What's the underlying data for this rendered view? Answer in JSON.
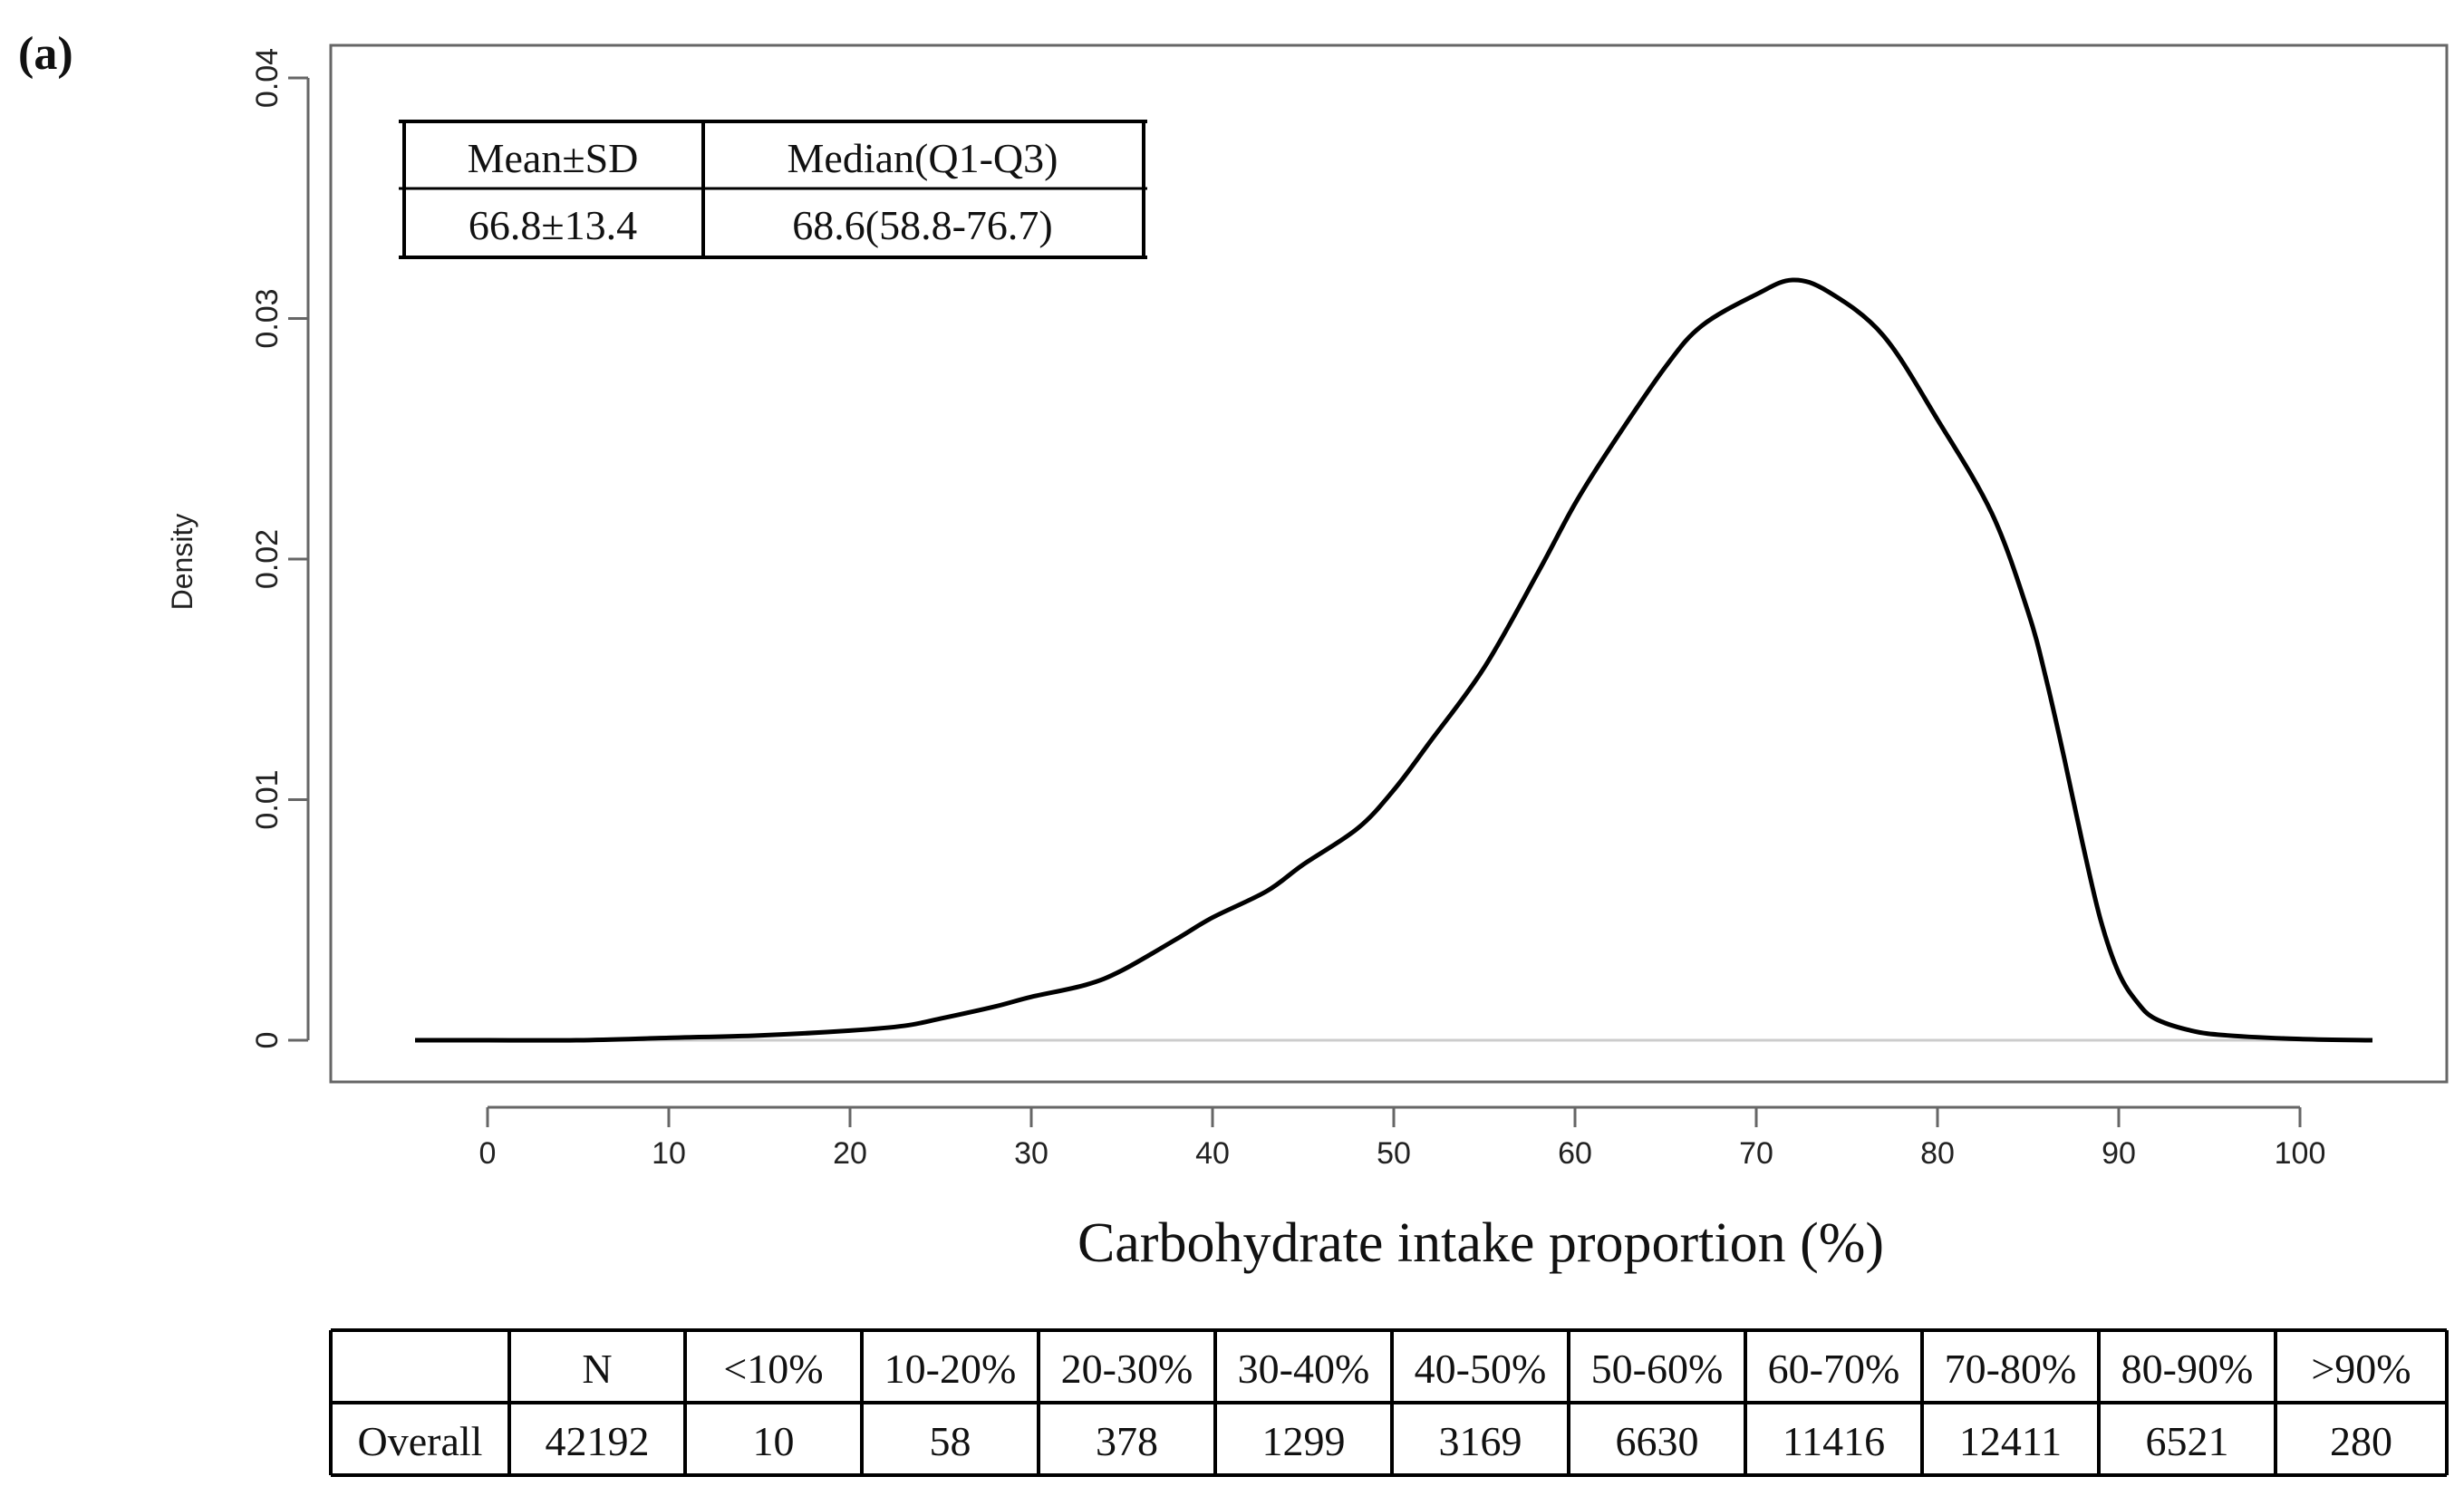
{
  "panel_label": "(a)",
  "chart_data": {
    "type": "line",
    "title": "",
    "xlabel": "Carbohydrate intake proportion (%)",
    "ylabel": "Density",
    "xlim": [
      -4,
      104
    ],
    "ylim": [
      0,
      0.04
    ],
    "x_ticks": [
      0,
      10,
      20,
      30,
      40,
      50,
      60,
      70,
      80,
      90,
      100
    ],
    "x_tick_labels": [
      "0",
      "10",
      "20",
      "30",
      "40",
      "50",
      "60",
      "70",
      "80",
      "90",
      "100"
    ],
    "y_ticks": [
      0,
      0.01,
      0.02,
      0.03,
      0.04
    ],
    "y_tick_labels": [
      "0",
      "0.01",
      "0.02",
      "0.03",
      "0.04"
    ],
    "grid": false,
    "series": [
      {
        "name": "Density",
        "x": [
          -4,
          0,
          5,
          10,
          15,
          20,
          23,
          25,
          28,
          30,
          33,
          35,
          38,
          40,
          43,
          45,
          48,
          50,
          52,
          55,
          58,
          60,
          62,
          65,
          67,
          70,
          72,
          74,
          77,
          80,
          83,
          85,
          86,
          87,
          88,
          89,
          90,
          91,
          92,
          94,
          96,
          100,
          104
        ],
        "y": [
          0,
          0,
          0,
          0.0001,
          0.0002,
          0.0004,
          0.0006,
          0.0009,
          0.0014,
          0.0018,
          0.0023,
          0.0029,
          0.0042,
          0.0051,
          0.0062,
          0.0073,
          0.0088,
          0.0104,
          0.0124,
          0.0155,
          0.0195,
          0.0223,
          0.0247,
          0.028,
          0.0297,
          0.031,
          0.0316,
          0.0311,
          0.0293,
          0.0258,
          0.0219,
          0.0178,
          0.015,
          0.0117,
          0.0082,
          0.005,
          0.0028,
          0.0016,
          0.0009,
          0.0004,
          0.0002,
          5e-05,
          0
        ]
      }
    ],
    "baseline_y": 0
  },
  "summary_table": {
    "headers": [
      "Mean±SD",
      "Median(Q1-Q3)"
    ],
    "values": [
      "66.8±13.4",
      "68.6(58.8-76.7)"
    ]
  },
  "distribution_table": {
    "headers": [
      "",
      "N",
      "<10%",
      "10-20%",
      "20-30%",
      "30-40%",
      "40-50%",
      "50-60%",
      "60-70%",
      "70-80%",
      "80-90%",
      ">90%"
    ],
    "row": [
      "Overall",
      "42192",
      "10",
      "58",
      "378",
      "1299",
      "3169",
      "6630",
      "11416",
      "12411",
      "6521",
      "280"
    ]
  },
  "colors": {
    "curve": "#000000",
    "axis": "#666666",
    "baseline": "#cccccc",
    "table_border": "#000000"
  }
}
